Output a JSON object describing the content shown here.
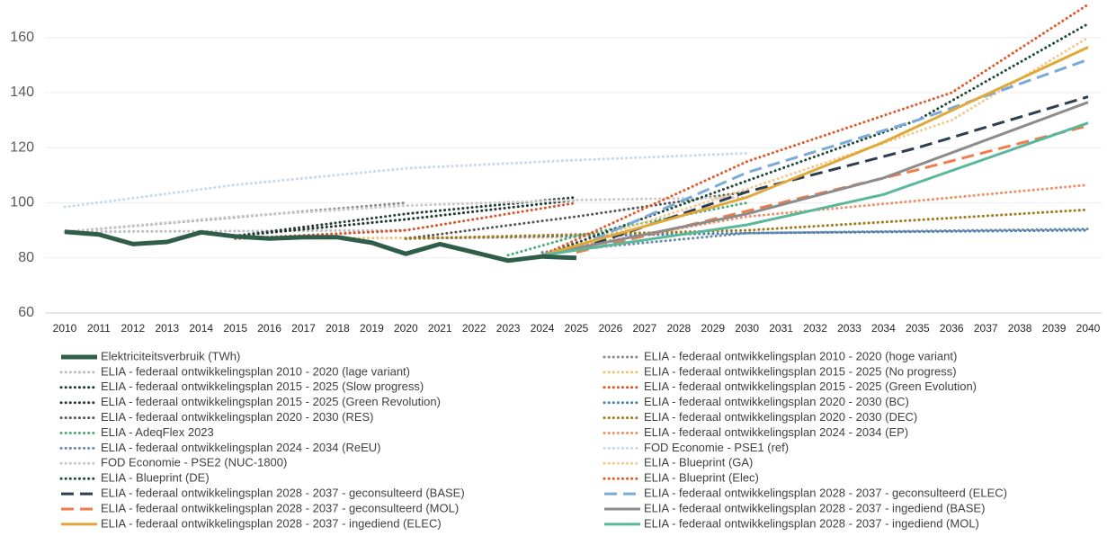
{
  "chart_data": {
    "type": "line",
    "xlim": [
      2010,
      2040
    ],
    "xticks": [
      2010,
      2011,
      2012,
      2013,
      2014,
      2015,
      2016,
      2017,
      2018,
      2019,
      2020,
      2021,
      2022,
      2023,
      2024,
      2025,
      2026,
      2027,
      2028,
      2029,
      2030,
      2031,
      2032,
      2033,
      2034,
      2035,
      2036,
      2037,
      2038,
      2039,
      2040
    ],
    "ylim": [
      60,
      173
    ],
    "yticks": [
      60,
      80,
      100,
      120,
      140,
      160
    ],
    "grid": true,
    "legend": "bottom",
    "series": [
      {
        "name": "Elektriciteitsverbruik (TWh)",
        "color": "#2e5e4a",
        "style": "solid",
        "width": 5,
        "x": [
          2010,
          2011,
          2012,
          2013,
          2014,
          2015,
          2016,
          2017,
          2018,
          2019,
          2020,
          2021,
          2022,
          2023,
          2024,
          2025
        ],
        "values": [
          89.5,
          88.5,
          85,
          85.8,
          89.3,
          87.8,
          87,
          87.5,
          87.5,
          85.5,
          81.5,
          85,
          82,
          79,
          80.5,
          80
        ]
      },
      {
        "name": "ELIA - federaal ontwikkelingsplan 2010 - 2020 (hoge variant)",
        "color": "#8a8a8a",
        "style": "dotted",
        "width": 3,
        "x": [
          2010,
          2020
        ],
        "values": [
          89.5,
          100
        ]
      },
      {
        "name": "ELIA - federaal ontwikkelingsplan 2010 - 2020 (lage variant)",
        "color": "#bdbdbd",
        "style": "dotted",
        "width": 3,
        "x": [
          2010,
          2020
        ],
        "values": [
          89.5,
          90
        ]
      },
      {
        "name": "ELIA - federaal ontwikkelingsplan 2015 - 2025 (No progress)",
        "color": "#f2c078",
        "style": "dotted",
        "width": 3,
        "x": [
          2015,
          2025
        ],
        "values": [
          87,
          87.5
        ]
      },
      {
        "name": "ELIA - federaal ontwikkelingsplan 2015 - 2025 (Slow progress)",
        "color": "#1e3a2e",
        "style": "dotted",
        "width": 3,
        "x": [
          2015,
          2020,
          2025
        ],
        "values": [
          88,
          94,
          101
        ]
      },
      {
        "name": "ELIA - federaal ontwikkelingsplan 2015 - 2025 (Green Evolution)",
        "color": "#d9532a",
        "style": "dotted",
        "width": 3,
        "x": [
          2015,
          2020,
          2025
        ],
        "values": [
          87,
          90,
          100
        ]
      },
      {
        "name": "ELIA - federaal ontwikkelingsplan 2015 - 2025 (Green Revolution)",
        "color": "#2a3a34",
        "style": "dotted",
        "width": 3,
        "x": [
          2015,
          2020,
          2025
        ],
        "values": [
          88,
          96,
          102
        ]
      },
      {
        "name": "ELIA - federaal ontwikkelingsplan 2020 - 2030 (BC)",
        "color": "#4a7fb5",
        "style": "dotted",
        "width": 3,
        "x": [
          2020,
          2030,
          2040
        ],
        "values": [
          87,
          89,
          90
        ]
      },
      {
        "name": "ELIA - federaal ontwikkelingsplan 2020 - 2030 (RES)",
        "color": "#555555",
        "style": "dotted",
        "width": 3,
        "x": [
          2020,
          2025,
          2030
        ],
        "values": [
          87,
          95,
          104
        ]
      },
      {
        "name": "ELIA - federaal ontwikkelingsplan 2020 - 2030 (DEC)",
        "color": "#a07a1a",
        "style": "dotted",
        "width": 3,
        "x": [
          2020,
          2030,
          2040
        ],
        "values": [
          87,
          90,
          97.5
        ]
      },
      {
        "name": "ELIA - AdeqFlex 2023",
        "color": "#4aaa7a",
        "style": "dotted",
        "width": 3,
        "x": [
          2023,
          2025,
          2030
        ],
        "values": [
          81,
          88,
          100
        ]
      },
      {
        "name": "ELIA - federaal ontwikkelingsplan 2024 - 2034 (EP)",
        "color": "#f0906a",
        "style": "dotted",
        "width": 3,
        "x": [
          2024,
          2030,
          2040
        ],
        "values": [
          82,
          95,
          106.5
        ]
      },
      {
        "name": "ELIA - federaal ontwikkelingsplan 2024 - 2034 (ReEU)",
        "color": "#6a8aa8",
        "style": "dotted",
        "width": 3,
        "x": [
          2024,
          2030,
          2040
        ],
        "values": [
          82,
          89,
          90.5
        ]
      },
      {
        "name": "FOD Economie - PSE1 (ref)",
        "color": "#c5d9ec",
        "style": "dotted",
        "width": 3,
        "x": [
          2010,
          2015,
          2020,
          2025,
          2030
        ],
        "values": [
          98.5,
          106.5,
          112.5,
          115.5,
          118
        ]
      },
      {
        "name": "FOD Economie - PSE2 (NUC-1800)",
        "color": "#c8c8c8",
        "style": "dotted",
        "width": 3,
        "x": [
          2010,
          2015,
          2020,
          2025,
          2030
        ],
        "values": [
          89.5,
          95,
          99,
          101,
          102
        ]
      },
      {
        "name": "ELIA - Blueprint (GA)",
        "color": "#f5c890",
        "style": "dotted",
        "width": 3,
        "x": [
          2024,
          2030,
          2036,
          2040
        ],
        "values": [
          81,
          105,
          130,
          160
        ]
      },
      {
        "name": "ELIA - Blueprint (DE)",
        "color": "#1f4a35",
        "style": "dotted",
        "width": 3,
        "x": [
          2024,
          2030,
          2035,
          2040
        ],
        "values": [
          81,
          108,
          130,
          165
        ]
      },
      {
        "name": "ELIA - Blueprint (Elec)",
        "color": "#e0592a",
        "style": "dotted",
        "width": 3,
        "x": [
          2024,
          2030,
          2036,
          2040
        ],
        "values": [
          81,
          115,
          140,
          172
        ]
      },
      {
        "name": "ELIA - federaal ontwikkelingsplan 2028 - 2037 - geconsulteerd (BASE)",
        "color": "#2e3e50",
        "style": "dashed",
        "width": 3,
        "x": [
          2025,
          2030,
          2035,
          2040
        ],
        "values": [
          83,
          104,
          120,
          138.5
        ]
      },
      {
        "name": "ELIA - federaal ontwikkelingsplan 2028 - 2037 - geconsulteerd (ELEC)",
        "color": "#7aaad8",
        "style": "dashed",
        "width": 3,
        "x": [
          2025,
          2030,
          2035,
          2040
        ],
        "values": [
          84,
          111,
          130,
          152
        ]
      },
      {
        "name": "ELIA - federaal ontwikkelingsplan 2028 - 2037 - geconsulteerd (MOL)",
        "color": "#ef7c4a",
        "style": "dashed",
        "width": 3,
        "x": [
          2025,
          2030,
          2035,
          2040
        ],
        "values": [
          82,
          97,
          112,
          128
        ]
      },
      {
        "name": "ELIA - federaal ontwikkelingsplan 2028 - 2037 - ingediend (BASE)",
        "color": "#8c8c8c",
        "style": "solid",
        "width": 3,
        "x": [
          2024,
          2030,
          2034,
          2040
        ],
        "values": [
          81,
          96,
          109,
          136.5
        ]
      },
      {
        "name": "ELIA - federaal ontwikkelingsplan 2028 - 2037 - ingediend (ELEC)",
        "color": "#e0a83a",
        "style": "solid",
        "width": 3,
        "x": [
          2024,
          2030,
          2034,
          2040
        ],
        "values": [
          81,
          102,
          122,
          156.5
        ]
      },
      {
        "name": "ELIA - federaal ontwikkelingsplan 2028 - 2037 - ingediend (MOL)",
        "color": "#5ab89a",
        "style": "solid",
        "width": 3,
        "x": [
          2024,
          2030,
          2034,
          2040
        ],
        "values": [
          81,
          92,
          103,
          129
        ]
      }
    ]
  }
}
